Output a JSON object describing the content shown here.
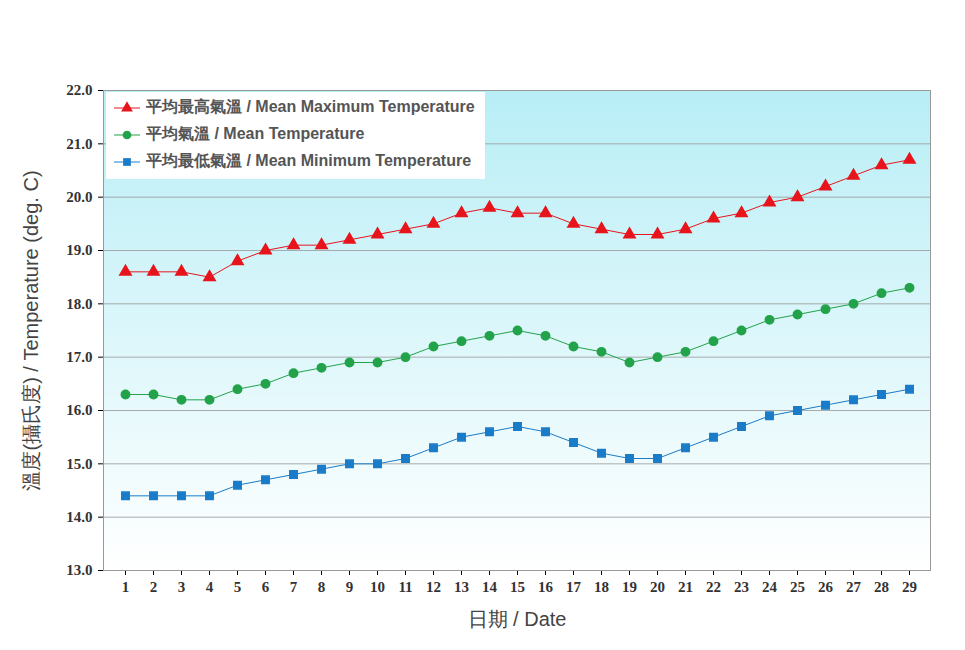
{
  "chart_data": {
    "type": "line",
    "x_label": "日期 / Date",
    "y_label": "溫度(攝氏度) / Temperature (deg. C)",
    "categories": [
      "1",
      "2",
      "3",
      "4",
      "5",
      "6",
      "7",
      "8",
      "9",
      "10",
      "11",
      "12",
      "13",
      "14",
      "15",
      "16",
      "17",
      "18",
      "19",
      "20",
      "21",
      "22",
      "23",
      "24",
      "25",
      "26",
      "27",
      "28",
      "29"
    ],
    "series": [
      {
        "name": "平均最高氣溫 / Mean Maximum Temperature",
        "color": "#e8141c",
        "marker": "triangle",
        "values": [
          18.6,
          18.6,
          18.6,
          18.5,
          18.8,
          19.0,
          19.1,
          19.1,
          19.2,
          19.3,
          19.4,
          19.5,
          19.7,
          19.8,
          19.7,
          19.7,
          19.5,
          19.4,
          19.3,
          19.3,
          19.4,
          19.6,
          19.7,
          19.9,
          20.0,
          20.2,
          20.4,
          20.6,
          20.7
        ]
      },
      {
        "name": "平均氣溫 / Mean Temperature",
        "color": "#22a34a",
        "marker": "circle",
        "values": [
          16.3,
          16.3,
          16.2,
          16.2,
          16.4,
          16.5,
          16.7,
          16.8,
          16.9,
          16.9,
          17.0,
          17.2,
          17.3,
          17.4,
          17.5,
          17.4,
          17.2,
          17.1,
          16.9,
          17.0,
          17.1,
          17.3,
          17.5,
          17.7,
          17.8,
          17.9,
          18.0,
          18.2,
          18.3
        ]
      },
      {
        "name": "平均最低氣溫 / Mean Minimum Temperature",
        "color": "#1a7cc8",
        "marker": "square",
        "values": [
          14.4,
          14.4,
          14.4,
          14.4,
          14.6,
          14.7,
          14.8,
          14.9,
          15.0,
          15.0,
          15.1,
          15.3,
          15.5,
          15.6,
          15.7,
          15.6,
          15.4,
          15.2,
          15.1,
          15.1,
          15.3,
          15.5,
          15.7,
          15.9,
          16.0,
          16.1,
          16.2,
          16.3,
          16.4
        ]
      }
    ],
    "ylim": [
      13,
      22
    ],
    "yticks": [
      {
        "value": 13,
        "label": "13.0"
      },
      {
        "value": 14,
        "label": "14.0"
      },
      {
        "value": 15,
        "label": "15.0"
      },
      {
        "value": 16,
        "label": "16.0"
      },
      {
        "value": 17,
        "label": "17.0"
      },
      {
        "value": 18,
        "label": "18.0"
      },
      {
        "value": 19,
        "label": "19.0"
      },
      {
        "value": 20,
        "label": "20.0"
      },
      {
        "value": 21,
        "label": "21.0"
      },
      {
        "value": 22,
        "label": "22.0"
      }
    ],
    "grid": true,
    "legend": "top-left"
  }
}
